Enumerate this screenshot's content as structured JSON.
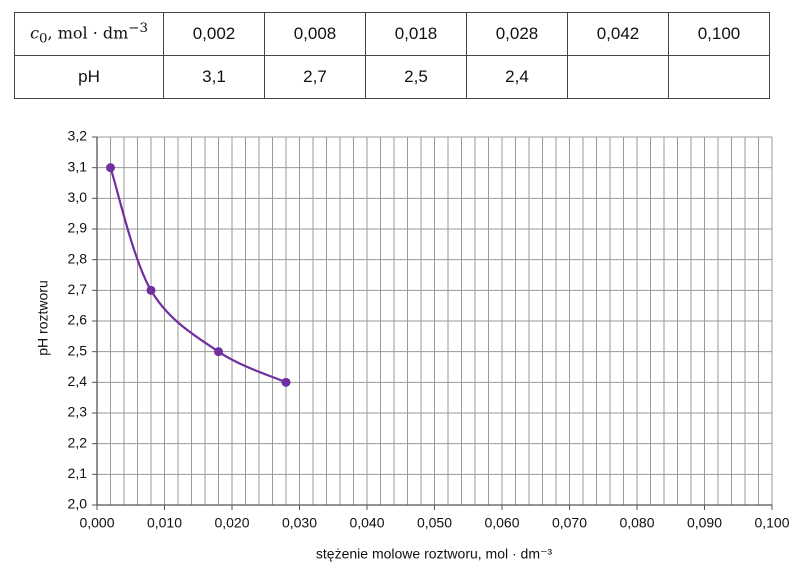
{
  "table": {
    "rows": [
      [
        {
          "symbol": "c",
          "subscript": "0",
          "unit": ", mol · dm",
          "unit_exponent": "−3"
        },
        "0,002",
        "0,008",
        "0,018",
        "0,028",
        "0,042",
        "0,100"
      ],
      [
        "pH",
        "3,1",
        "2,7",
        "2,5",
        "2,4",
        null,
        null
      ]
    ]
  },
  "chart_data": {
    "type": "line",
    "smooth": true,
    "markers": true,
    "x_label": "stężenie molowe roztworu, mol · dm⁻³",
    "y_label": "pH roztworu",
    "x": [
      0.002,
      0.008,
      0.018,
      0.028
    ],
    "values": [
      3.1,
      2.7,
      2.5,
      2.4
    ],
    "color": "#7030a0",
    "xlim": [
      0,
      0.1
    ],
    "ylim": [
      2.0,
      3.2
    ],
    "xticks": [
      {
        "value": 0,
        "label": "0,000"
      },
      {
        "value": 0.01,
        "label": "0,010"
      },
      {
        "value": 0.02,
        "label": "0,020"
      },
      {
        "value": 0.03,
        "label": "0,030"
      },
      {
        "value": 0.04,
        "label": "0,040"
      },
      {
        "value": 0.05,
        "label": "0,050"
      },
      {
        "value": 0.06,
        "label": "0,060"
      },
      {
        "value": 0.07,
        "label": "0,070"
      },
      {
        "value": 0.08,
        "label": "0,080"
      },
      {
        "value": 0.09,
        "label": "0,090"
      },
      {
        "value": 0.1,
        "label": "0,100"
      }
    ],
    "yticks": [
      {
        "value": 2.0,
        "label": "2,0"
      },
      {
        "value": 2.1,
        "label": "2,1"
      },
      {
        "value": 2.2,
        "label": "2,2"
      },
      {
        "value": 2.3,
        "label": "2,3"
      },
      {
        "value": 2.4,
        "label": "2,4"
      },
      {
        "value": 2.5,
        "label": "2,5"
      },
      {
        "value": 2.6,
        "label": "2,6"
      },
      {
        "value": 2.7,
        "label": "2,7"
      },
      {
        "value": 2.8,
        "label": "2,8"
      },
      {
        "value": 2.9,
        "label": "2,9"
      },
      {
        "value": 3.0,
        "label": "3,0"
      },
      {
        "value": 3.1,
        "label": "3,1"
      },
      {
        "value": 3.2,
        "label": "3,2"
      }
    ],
    "grid": true
  }
}
